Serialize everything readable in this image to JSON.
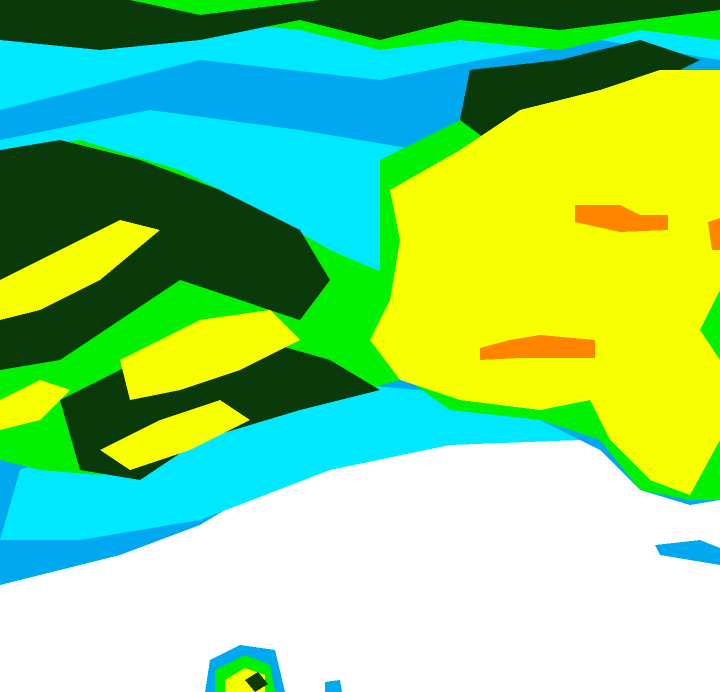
{
  "map": {
    "type": "radar-reflectivity",
    "colors": {
      "background": "#ffffff",
      "light_blue": "#00a8f0",
      "cyan": "#00e8ff",
      "bright_green": "#00f000",
      "dark_green": "#0a3a0a",
      "yellow": "#f8ff00",
      "orange": "#ff8400"
    }
  }
}
